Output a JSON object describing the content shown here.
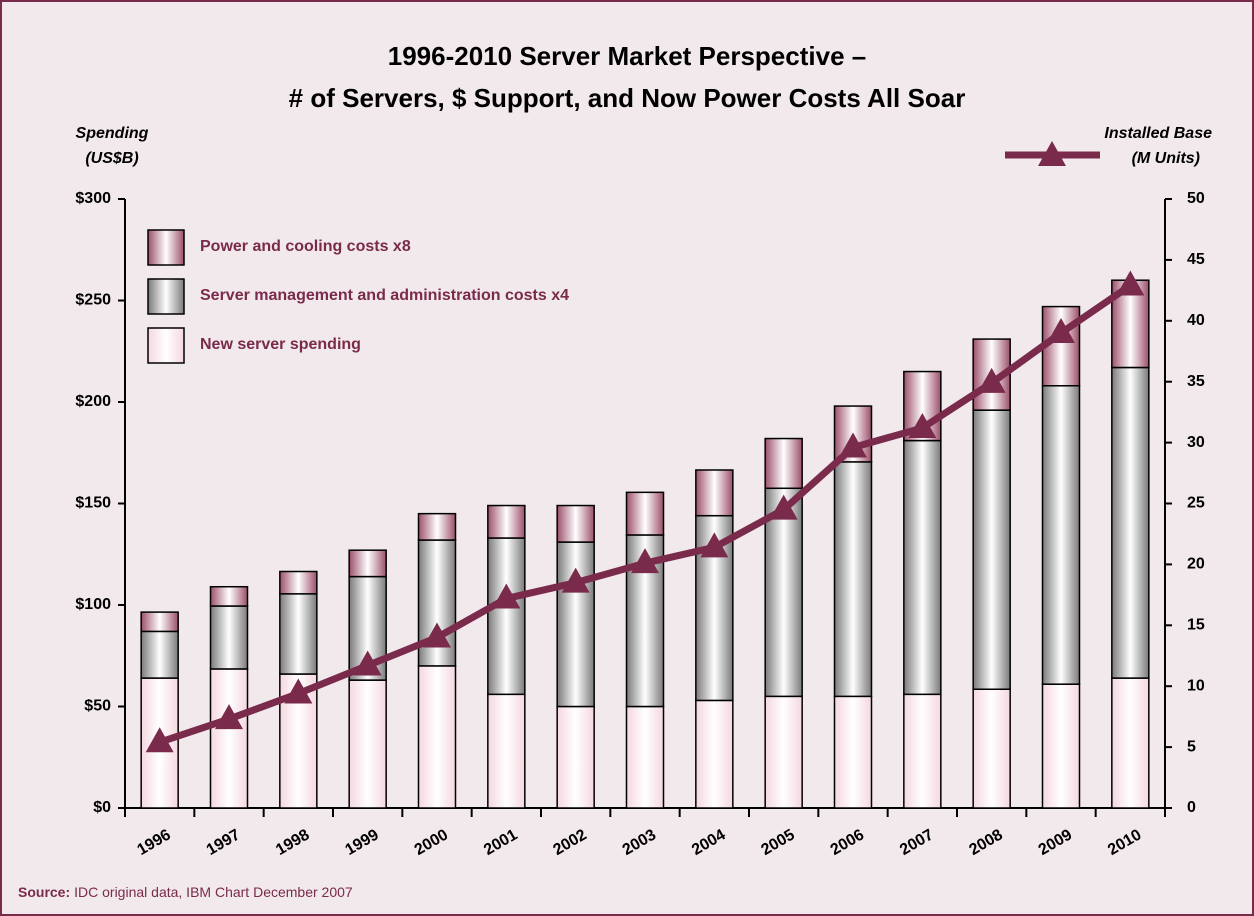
{
  "chart_data": {
    "type": "stacked_bar_line",
    "title": [
      "1996-2010 Server Market Perspective –",
      "# of Servers, $ Support, and Now Power Costs All Soar"
    ],
    "y_label": [
      "Spending",
      "(US$B)"
    ],
    "y2_label": [
      "Installed Base",
      "(M Units)"
    ],
    "source_label": "Source:",
    "source_text": "IDC original data, IBM Chart December 2007",
    "categories": [
      "1996",
      "1997",
      "1998",
      "1999",
      "2000",
      "2001",
      "2002",
      "2003",
      "2004",
      "2005",
      "2006",
      "2007",
      "2008",
      "2009",
      "2010"
    ],
    "series": [
      {
        "name": "New server spending",
        "color": "#f4d7df",
        "values": [
          64,
          68.5,
          66,
          63,
          70,
          56,
          50,
          50,
          53,
          55,
          55,
          56,
          58.5,
          61,
          64
        ]
      },
      {
        "name": "Server management and administration costs x4",
        "color": "#7a7a7a",
        "values": [
          23,
          31,
          39.5,
          51,
          62,
          77,
          81,
          84.5,
          91,
          102.5,
          115.5,
          125,
          137.5,
          147,
          153
        ]
      },
      {
        "name": "Power and cooling costs x8",
        "color": "#9c4f6b",
        "values": [
          9.5,
          9.5,
          11,
          13,
          13,
          16,
          18,
          21,
          22.5,
          24.5,
          27.5,
          34,
          35,
          39,
          43
        ]
      },
      {
        "type": "line",
        "axis": "y2",
        "color": "#7a2a4a",
        "values": [
          5.4,
          7.3,
          9.4,
          11.7,
          14.0,
          17.2,
          18.5,
          20.1,
          21.4,
          24.5,
          29.6,
          31.2,
          34.9,
          39.0,
          42.9
        ]
      }
    ],
    "ylim": [
      0,
      300
    ],
    "yticks": [
      {
        "value": 0,
        "label": "$0"
      },
      {
        "value": 50,
        "label": "$50"
      },
      {
        "value": 100,
        "label": "$100"
      },
      {
        "value": 150,
        "label": "$150"
      },
      {
        "value": 200,
        "label": "$200"
      },
      {
        "value": 250,
        "label": "$250"
      },
      {
        "value": 300,
        "label": "$300"
      }
    ],
    "y2lim": [
      0,
      50
    ],
    "y2ticks": [
      0,
      5,
      10,
      15,
      20,
      25,
      30,
      35,
      40,
      45,
      50
    ],
    "legend": "top-left"
  }
}
